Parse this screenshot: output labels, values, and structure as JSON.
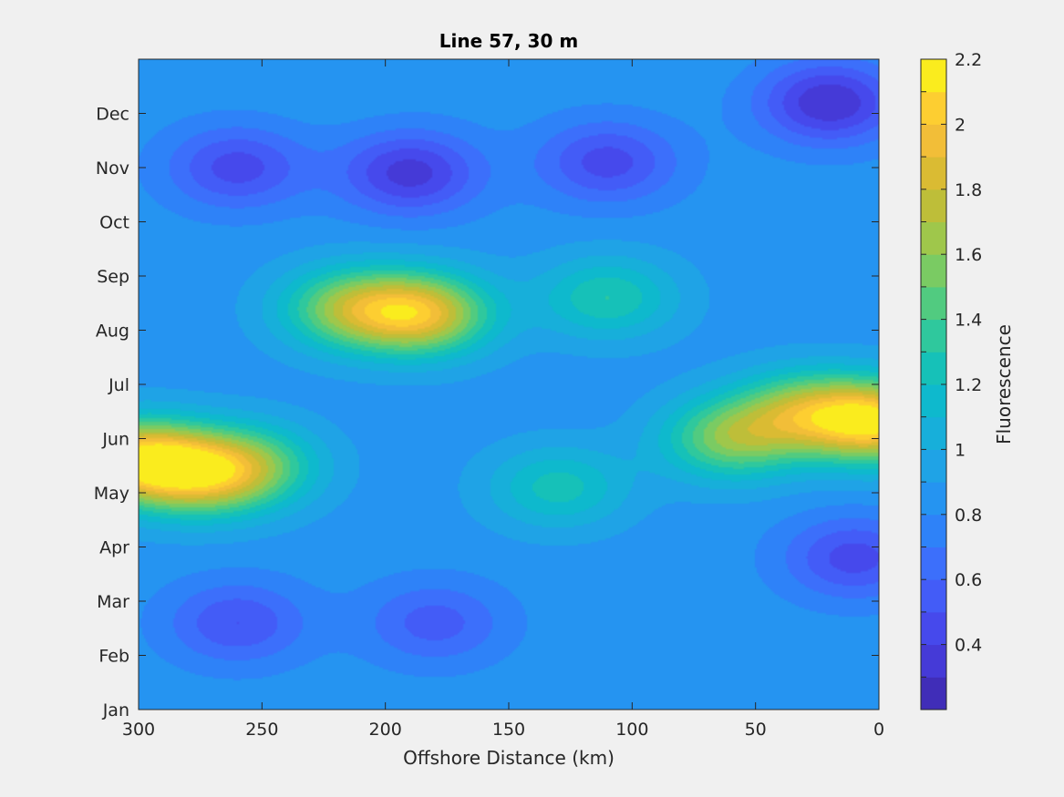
{
  "chart_data": {
    "type": "heatmap",
    "title": "Line 57, 30 m",
    "xlabel": "Offshore Distance (km)",
    "ylabel": "",
    "x_reversed": true,
    "xlim": [
      0,
      300
    ],
    "x_ticks": [
      300,
      250,
      200,
      150,
      100,
      50,
      0
    ],
    "y_ticks": [
      "Jan",
      "Feb",
      "Mar",
      "Apr",
      "May",
      "Jun",
      "Jul",
      "Aug",
      "Sep",
      "Oct",
      "Nov",
      "Dec"
    ],
    "colorbar": {
      "label": "Fluorescence",
      "range": [
        0.2,
        2.2
      ],
      "ticks": [
        0.4,
        0.6,
        0.8,
        1,
        1.2,
        1.4,
        1.6,
        1.8,
        2,
        2.2
      ],
      "tick_labels": [
        "0.4",
        "0.6",
        "0.8",
        "1",
        "1.2",
        "1.4",
        "1.6",
        "1.8",
        "2",
        "2.2"
      ],
      "levels": 20,
      "colormap": "parula"
    },
    "features": [
      {
        "x": 300,
        "month": 4.6,
        "value": 2.0
      },
      {
        "x": 275,
        "month": 4.3,
        "value": 1.55
      },
      {
        "x": 255,
        "month": 4.5,
        "value": 1.45
      },
      {
        "x": 215,
        "month": 7.4,
        "value": 1.55
      },
      {
        "x": 185,
        "month": 7.3,
        "value": 1.85
      },
      {
        "x": 110,
        "month": 7.6,
        "value": 1.3
      },
      {
        "x": 60,
        "month": 5.0,
        "value": 1.55
      },
      {
        "x": 30,
        "month": 5.5,
        "value": 1.55
      },
      {
        "x": 0,
        "month": 5.3,
        "value": 2.0
      },
      {
        "x": 130,
        "month": 4.1,
        "value": 1.25
      },
      {
        "x": 260,
        "month": 10.0,
        "value": 0.45
      },
      {
        "x": 190,
        "month": 9.9,
        "value": 0.35
      },
      {
        "x": 110,
        "month": 10.1,
        "value": 0.45
      },
      {
        "x": 20,
        "month": 11.2,
        "value": 0.3
      },
      {
        "x": 260,
        "month": 1.6,
        "value": 0.5
      },
      {
        "x": 180,
        "month": 1.6,
        "value": 0.55
      },
      {
        "x": 10,
        "month": 2.8,
        "value": 0.45
      },
      {
        "x": 220,
        "month": 11.9,
        "value": 0.9
      },
      {
        "x": 80,
        "month": 12.5,
        "value": 0.9
      }
    ]
  }
}
